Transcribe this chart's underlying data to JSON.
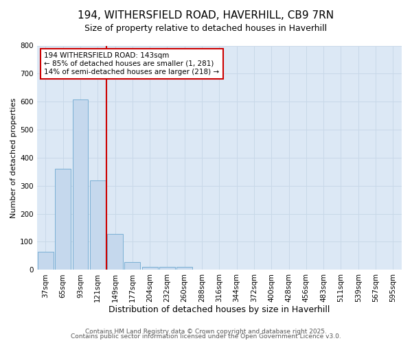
{
  "title_line1": "194, WITHERSFIELD ROAD, HAVERHILL, CB9 7RN",
  "title_line2": "Size of property relative to detached houses in Haverhill",
  "xlabel": "Distribution of detached houses by size in Haverhill",
  "ylabel": "Number of detached properties",
  "bar_labels": [
    "37sqm",
    "65sqm",
    "93sqm",
    "121sqm",
    "149sqm",
    "177sqm",
    "204sqm",
    "232sqm",
    "260sqm",
    "288sqm",
    "316sqm",
    "344sqm",
    "372sqm",
    "400sqm",
    "428sqm",
    "456sqm",
    "483sqm",
    "511sqm",
    "539sqm",
    "567sqm",
    "595sqm"
  ],
  "bar_heights": [
    65,
    360,
    607,
    318,
    128,
    27,
    10,
    10,
    10,
    0,
    0,
    0,
    0,
    0,
    0,
    0,
    0,
    0,
    0,
    0,
    0
  ],
  "bar_color": "#c5d8ed",
  "bar_edge_color": "#7aafd4",
  "property_line_color": "#cc0000",
  "property_line_x": 3.5,
  "annotation_text_line1": "194 WITHERSFIELD ROAD: 143sqm",
  "annotation_text_line2": "← 85% of detached houses are smaller (1, 281)",
  "annotation_text_line3": "14% of semi-detached houses are larger (218) →",
  "annotation_box_color": "#cc0000",
  "ylim": [
    0,
    800
  ],
  "yticks": [
    0,
    100,
    200,
    300,
    400,
    500,
    600,
    700,
    800
  ],
  "grid_color": "#c8d8e8",
  "plot_bg_color": "#dce8f5",
  "figure_bg_color": "#ffffff",
  "footer_line1": "Contains HM Land Registry data © Crown copyright and database right 2025.",
  "footer_line2": "Contains public sector information licensed under the Open Government Licence v3.0.",
  "title_fontsize": 11,
  "subtitle_fontsize": 9,
  "ylabel_fontsize": 8,
  "xlabel_fontsize": 9,
  "tick_fontsize": 7.5,
  "footer_fontsize": 6.5
}
